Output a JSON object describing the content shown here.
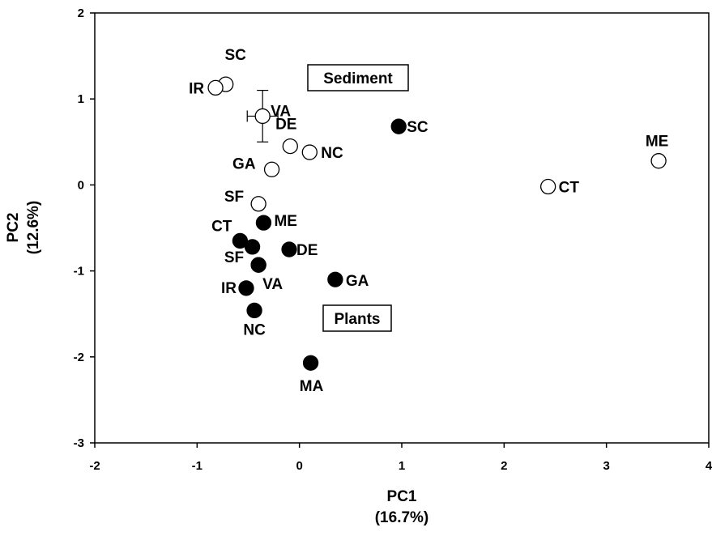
{
  "chart_data": {
    "type": "scatter",
    "title": "",
    "xlabel": "PC1",
    "xlabel_pct": "(16.7%)",
    "ylabel": "PC2",
    "ylabel_pct": "(12.6%)",
    "xlim": [
      -2,
      4
    ],
    "ylim": [
      -3,
      2
    ],
    "xticks": [
      -2,
      -1,
      0,
      1,
      2,
      3,
      4
    ],
    "yticks": [
      -3,
      -2,
      -1,
      0,
      1,
      2
    ],
    "grid": false,
    "annotations": [
      "Sediment",
      "Plants"
    ],
    "series": [
      {
        "name": "Sediment",
        "marker": "open-circle",
        "color": "#000000",
        "points": [
          {
            "label": "SC",
            "x": -0.72,
            "y": 1.17
          },
          {
            "label": "IR",
            "x": -0.82,
            "y": 1.13
          },
          {
            "label": "VA",
            "x": -0.36,
            "y": 0.8,
            "xerr": 0.15,
            "yerr": 0.3
          },
          {
            "label": "DE",
            "x": -0.09,
            "y": 0.45
          },
          {
            "label": "NC",
            "x": 0.1,
            "y": 0.38
          },
          {
            "label": "GA",
            "x": -0.27,
            "y": 0.18
          },
          {
            "label": "SF",
            "x": -0.4,
            "y": -0.22
          },
          {
            "label": "CT",
            "x": 2.43,
            "y": -0.02
          },
          {
            "label": "ME",
            "x": 3.51,
            "y": 0.28
          }
        ]
      },
      {
        "name": "Plants",
        "marker": "filled-circle",
        "color": "#000000",
        "points": [
          {
            "label": "SC",
            "x": 0.97,
            "y": 0.68
          },
          {
            "label": "ME",
            "x": -0.35,
            "y": -0.44
          },
          {
            "label": "CT",
            "x": -0.58,
            "y": -0.65
          },
          {
            "label": "",
            "x": -0.46,
            "y": -0.72
          },
          {
            "label": "DE",
            "x": -0.1,
            "y": -0.75
          },
          {
            "label": "SF",
            "x": -0.4,
            "y": -0.93
          },
          {
            "label": "VA",
            "x": -0.4,
            "y": -0.93
          },
          {
            "label": "IR",
            "x": -0.52,
            "y": -1.2
          },
          {
            "label": "GA",
            "x": 0.35,
            "y": -1.1
          },
          {
            "label": "NC",
            "x": -0.44,
            "y": -1.46
          },
          {
            "label": "MA",
            "x": 0.11,
            "y": -2.07
          }
        ]
      }
    ]
  }
}
